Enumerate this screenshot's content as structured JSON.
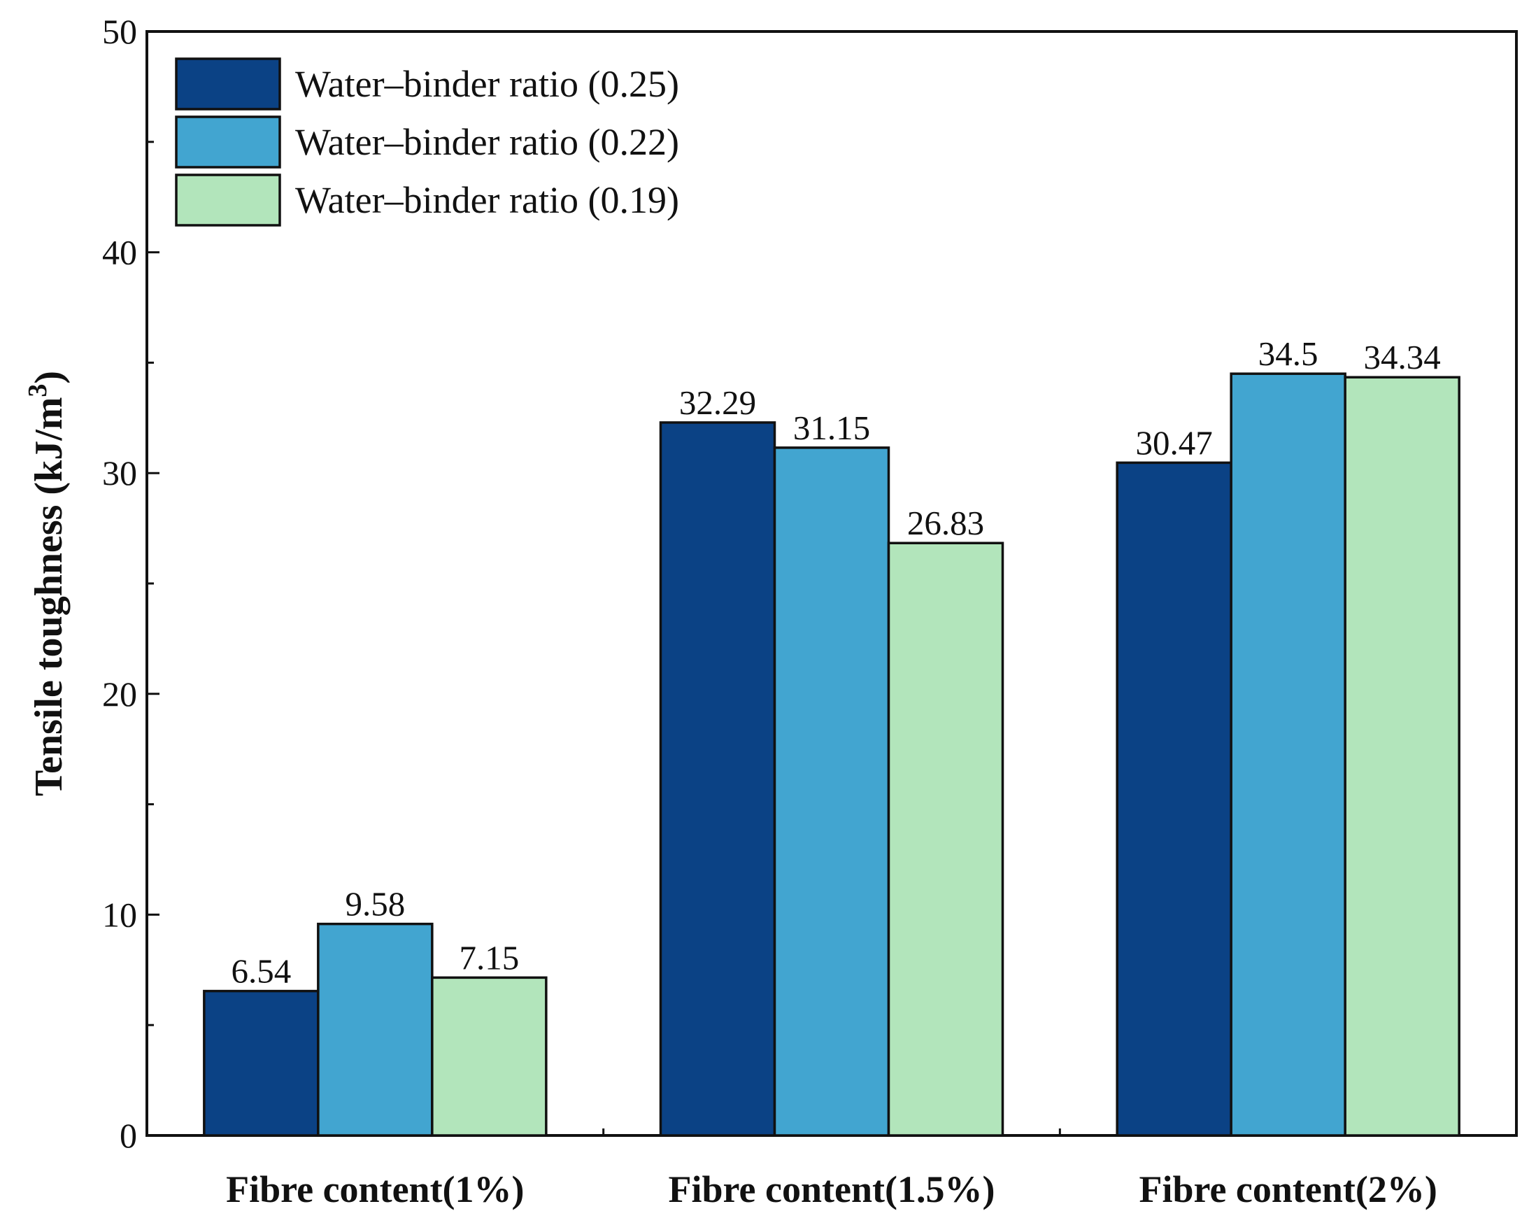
{
  "chart_data": {
    "type": "bar",
    "title": "",
    "xlabel": "",
    "ylabel": "Tensile toughness (kJ/m",
    "ylabel_superscript": "3",
    "ylabel_suffix": ")",
    "ylim": [
      0,
      50
    ],
    "yticks": [
      0,
      10,
      20,
      30,
      40,
      50
    ],
    "yticks_minor": [
      5,
      15,
      25,
      35,
      45
    ],
    "categories": [
      "Fibre content(1%)",
      "Fibre content(1.5%)",
      "Fibre content(2%)"
    ],
    "series": [
      {
        "name": "Water–binder ratio (0.25)",
        "color": "#0b4285",
        "values": [
          6.54,
          32.29,
          30.47
        ],
        "labels": [
          "6.54",
          "32.29",
          "30.47"
        ]
      },
      {
        "name": "Water–binder ratio (0.22)",
        "color": "#42a5d0",
        "values": [
          9.58,
          31.15,
          34.5
        ],
        "labels": [
          "9.58",
          "31.15",
          "34.5"
        ]
      },
      {
        "name": "Water–binder ratio (0.19)",
        "color": "#b2e5bb",
        "values": [
          7.15,
          26.83,
          34.34
        ],
        "labels": [
          "7.15",
          "26.83",
          "34.34"
        ]
      }
    ],
    "legend_position": "top-left",
    "grid": false
  }
}
